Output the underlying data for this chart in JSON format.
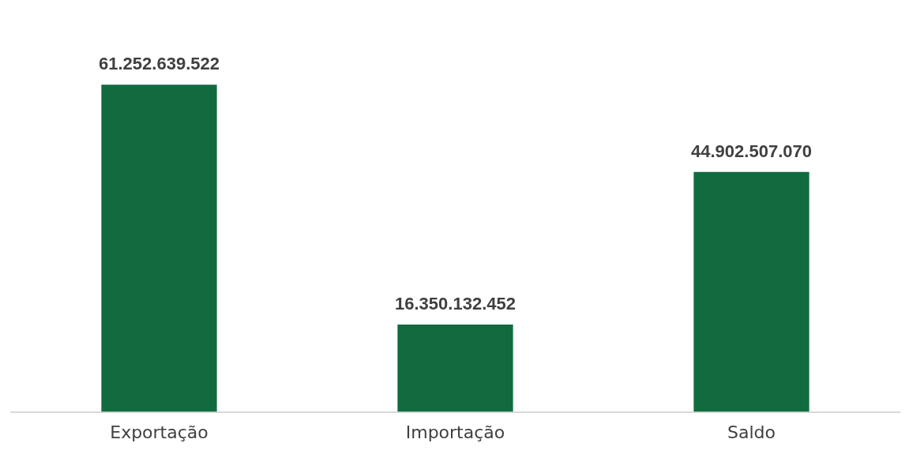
{
  "chart_data": {
    "type": "bar",
    "categories": [
      "Exportação",
      "Importação",
      "Saldo"
    ],
    "values": [
      61252639522,
      16350132452,
      44902507070
    ],
    "color": "#116b3f",
    "value_labels": [
      "61.252.639.522",
      "16.350.132.452",
      "44.902.507.070"
    ],
    "grid": false,
    "legend": false
  }
}
